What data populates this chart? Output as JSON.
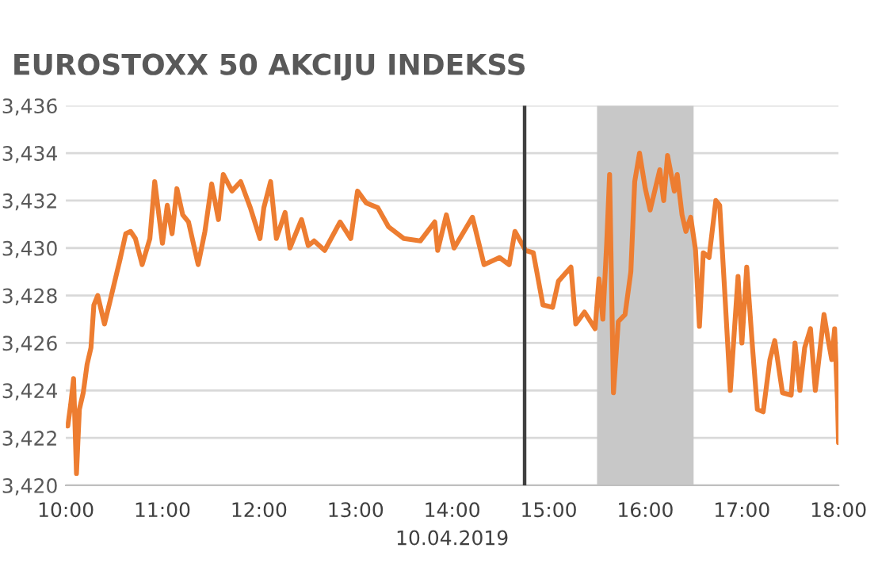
{
  "chart_data": {
    "type": "line",
    "title": "EUROSTOXX 50 AKCIJU INDEKSS",
    "xlabel": "10.04.2019",
    "xlim": [
      10,
      18
    ],
    "xticks": [
      {
        "value": 10,
        "label": "10:00"
      },
      {
        "value": 11,
        "label": "11:00"
      },
      {
        "value": 12,
        "label": "12:00"
      },
      {
        "value": 13,
        "label": "13:00"
      },
      {
        "value": 14,
        "label": "14:00"
      },
      {
        "value": 15,
        "label": "15:00"
      },
      {
        "value": 16,
        "label": "16:00"
      },
      {
        "value": 17,
        "label": "17:00"
      },
      {
        "value": 18,
        "label": "18:00"
      }
    ],
    "ylim": [
      3420,
      3436
    ],
    "yticks": [
      {
        "value": 3420,
        "label": "3,420"
      },
      {
        "value": 3422,
        "label": "3,422"
      },
      {
        "value": 3424,
        "label": "3,424"
      },
      {
        "value": 3426,
        "label": "3,426"
      },
      {
        "value": 3428,
        "label": "3,428"
      },
      {
        "value": 3430,
        "label": "3,430"
      },
      {
        "value": 3432,
        "label": "3,432"
      },
      {
        "value": 3434,
        "label": "3,434"
      },
      {
        "value": 3436,
        "label": "3,436"
      }
    ],
    "grid": "y",
    "legend": false,
    "marker": "none",
    "line_style": "solid",
    "ref_lines": [
      {
        "axis": "x",
        "value": 14.75,
        "label": null,
        "color": "#404040"
      }
    ],
    "bands": [
      {
        "axis": "x",
        "from": 15.5,
        "to": 16.5,
        "label": null,
        "color": "#c8c8c8"
      }
    ],
    "series": [
      {
        "color": "#ed7d31",
        "x": [
          10.02,
          10.05,
          10.08,
          10.11,
          10.14,
          10.18,
          10.22,
          10.26,
          10.29,
          10.33,
          10.4,
          10.46,
          10.53,
          10.56,
          10.62,
          10.67,
          10.72,
          10.79,
          10.87,
          10.92,
          11.0,
          11.05,
          11.1,
          11.15,
          11.21,
          11.27,
          11.37,
          11.44,
          11.51,
          11.58,
          11.63,
          11.72,
          11.81,
          11.91,
          12.01,
          12.05,
          12.12,
          12.18,
          12.27,
          12.32,
          12.44,
          12.51,
          12.57,
          12.68,
          12.84,
          12.95,
          13.02,
          13.11,
          13.23,
          13.34,
          13.5,
          13.67,
          13.82,
          13.85,
          13.94,
          14.02,
          14.21,
          14.33,
          14.49,
          14.59,
          14.65,
          14.76,
          14.84,
          14.94,
          15.04,
          15.1,
          15.23,
          15.28,
          15.37,
          15.48,
          15.52,
          15.56,
          15.6,
          15.63,
          15.67,
          15.72,
          15.79,
          15.85,
          15.89,
          15.94,
          16.0,
          16.05,
          16.15,
          16.19,
          16.23,
          16.3,
          16.33,
          16.38,
          16.42,
          16.47,
          16.52,
          16.56,
          16.6,
          16.66,
          16.73,
          16.77,
          16.82,
          16.88,
          16.96,
          17.0,
          17.05,
          17.11,
          17.16,
          17.22,
          17.29,
          17.34,
          17.42,
          17.51,
          17.55,
          17.6,
          17.65,
          17.71,
          17.76,
          17.85,
          17.89,
          17.93,
          17.96,
          17.99,
          18.0
        ],
        "values": [
          3422.5,
          3423.4,
          3424.5,
          3420.5,
          3423.2,
          3423.9,
          3425.1,
          3425.8,
          3427.6,
          3428.0,
          3426.8,
          3427.8,
          3429.0,
          3429.5,
          3430.6,
          3430.7,
          3430.4,
          3429.3,
          3430.4,
          3432.8,
          3430.2,
          3431.8,
          3430.6,
          3432.5,
          3431.4,
          3431.1,
          3429.3,
          3430.7,
          3432.7,
          3431.2,
          3433.1,
          3432.4,
          3432.8,
          3431.7,
          3430.4,
          3431.7,
          3432.8,
          3430.4,
          3431.5,
          3430.0,
          3431.2,
          3430.1,
          3430.3,
          3429.9,
          3431.1,
          3430.4,
          3432.4,
          3431.9,
          3431.7,
          3430.9,
          3430.4,
          3430.3,
          3431.1,
          3429.9,
          3431.4,
          3430.0,
          3431.3,
          3429.3,
          3429.6,
          3429.3,
          3430.7,
          3429.9,
          3429.8,
          3427.6,
          3427.5,
          3428.6,
          3429.2,
          3426.8,
          3427.3,
          3426.6,
          3428.7,
          3427.0,
          3430.2,
          3433.1,
          3423.9,
          3426.9,
          3427.2,
          3429.0,
          3432.8,
          3434.0,
          3432.5,
          3431.6,
          3433.3,
          3432.0,
          3433.9,
          3432.4,
          3433.1,
          3431.4,
          3430.7,
          3431.3,
          3429.9,
          3426.7,
          3429.8,
          3429.6,
          3432.0,
          3431.8,
          3428.3,
          3424.0,
          3428.8,
          3426.0,
          3429.2,
          3425.8,
          3423.2,
          3423.1,
          3425.3,
          3426.1,
          3423.9,
          3423.8,
          3426.0,
          3424.0,
          3425.8,
          3426.6,
          3424.0,
          3427.2,
          3426.2,
          3425.3,
          3426.6,
          3423.5,
          3421.8
        ]
      }
    ]
  }
}
